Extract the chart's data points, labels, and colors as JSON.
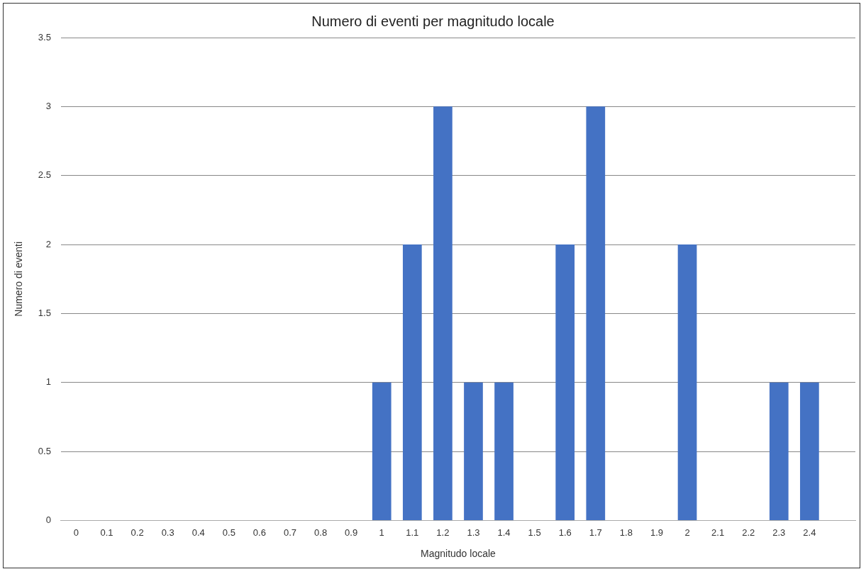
{
  "chart_data": {
    "type": "bar",
    "title": "Numero di eventi per magnitudo locale",
    "xlabel": "Magnitudo locale",
    "ylabel": "Numero di eventi",
    "categories": [
      "0",
      "0.1",
      "0.2",
      "0.3",
      "0.4",
      "0.5",
      "0.6",
      "0.7",
      "0.8",
      "0.9",
      "1",
      "1.1",
      "1.2",
      "1.3",
      "1.4",
      "1.5",
      "1.6",
      "1.7",
      "1.8",
      "1.9",
      "2",
      "2.1",
      "2.2",
      "2.3",
      "2.4",
      null
    ],
    "values": [
      0,
      0,
      0,
      0,
      0,
      0,
      0,
      0,
      0,
      0,
      1,
      2,
      3,
      1,
      1,
      0,
      2,
      3,
      0,
      0,
      2,
      0,
      0,
      1,
      1,
      null
    ],
    "color": "#4472c4",
    "ylim": [
      0,
      3.5
    ],
    "yticks": [
      0,
      0.5,
      1,
      1.5,
      2,
      2.5,
      3,
      3.5
    ],
    "grid": "y",
    "legend": false
  }
}
